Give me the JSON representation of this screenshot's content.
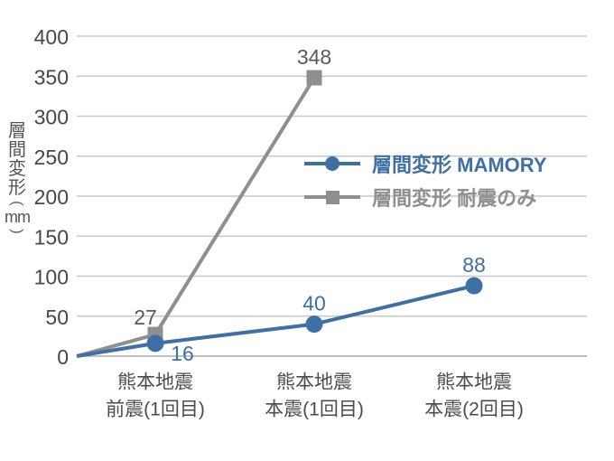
{
  "chart_data": {
    "type": "line",
    "title": "",
    "xlabel": "",
    "ylabel": "層間変形(mm)",
    "ylim": [
      0,
      400
    ],
    "yticks": [
      0,
      50,
      100,
      150,
      200,
      250,
      300,
      350,
      400
    ],
    "grid": true,
    "lines_start_at_origin": true,
    "legend_position": "center-right",
    "categories": [
      [
        "熊本地震",
        "前震(1回目)"
      ],
      [
        "熊本地震",
        "本震(1回目)"
      ],
      [
        "熊本地震",
        "本震(2回目)"
      ]
    ],
    "series": [
      {
        "name": "層間変形 MAMORY",
        "values": [
          16,
          40,
          88
        ],
        "color": "#3e6fa5",
        "marker": "circle",
        "label_color": "#3e6fa5",
        "label_positions": [
          "below-right",
          "above",
          "above"
        ]
      },
      {
        "name": "層間変形 耐震のみ",
        "values": [
          27,
          348
        ],
        "color": "#8f8f8f",
        "marker": "square",
        "label_color": "#595959",
        "label_positions": [
          "above-left",
          "above"
        ]
      }
    ],
    "colors": {
      "grid_line": "#c9c9c9",
      "axis_line": "#ababab",
      "tick_text": "#474747",
      "category_text": "#4c4c4c"
    }
  }
}
